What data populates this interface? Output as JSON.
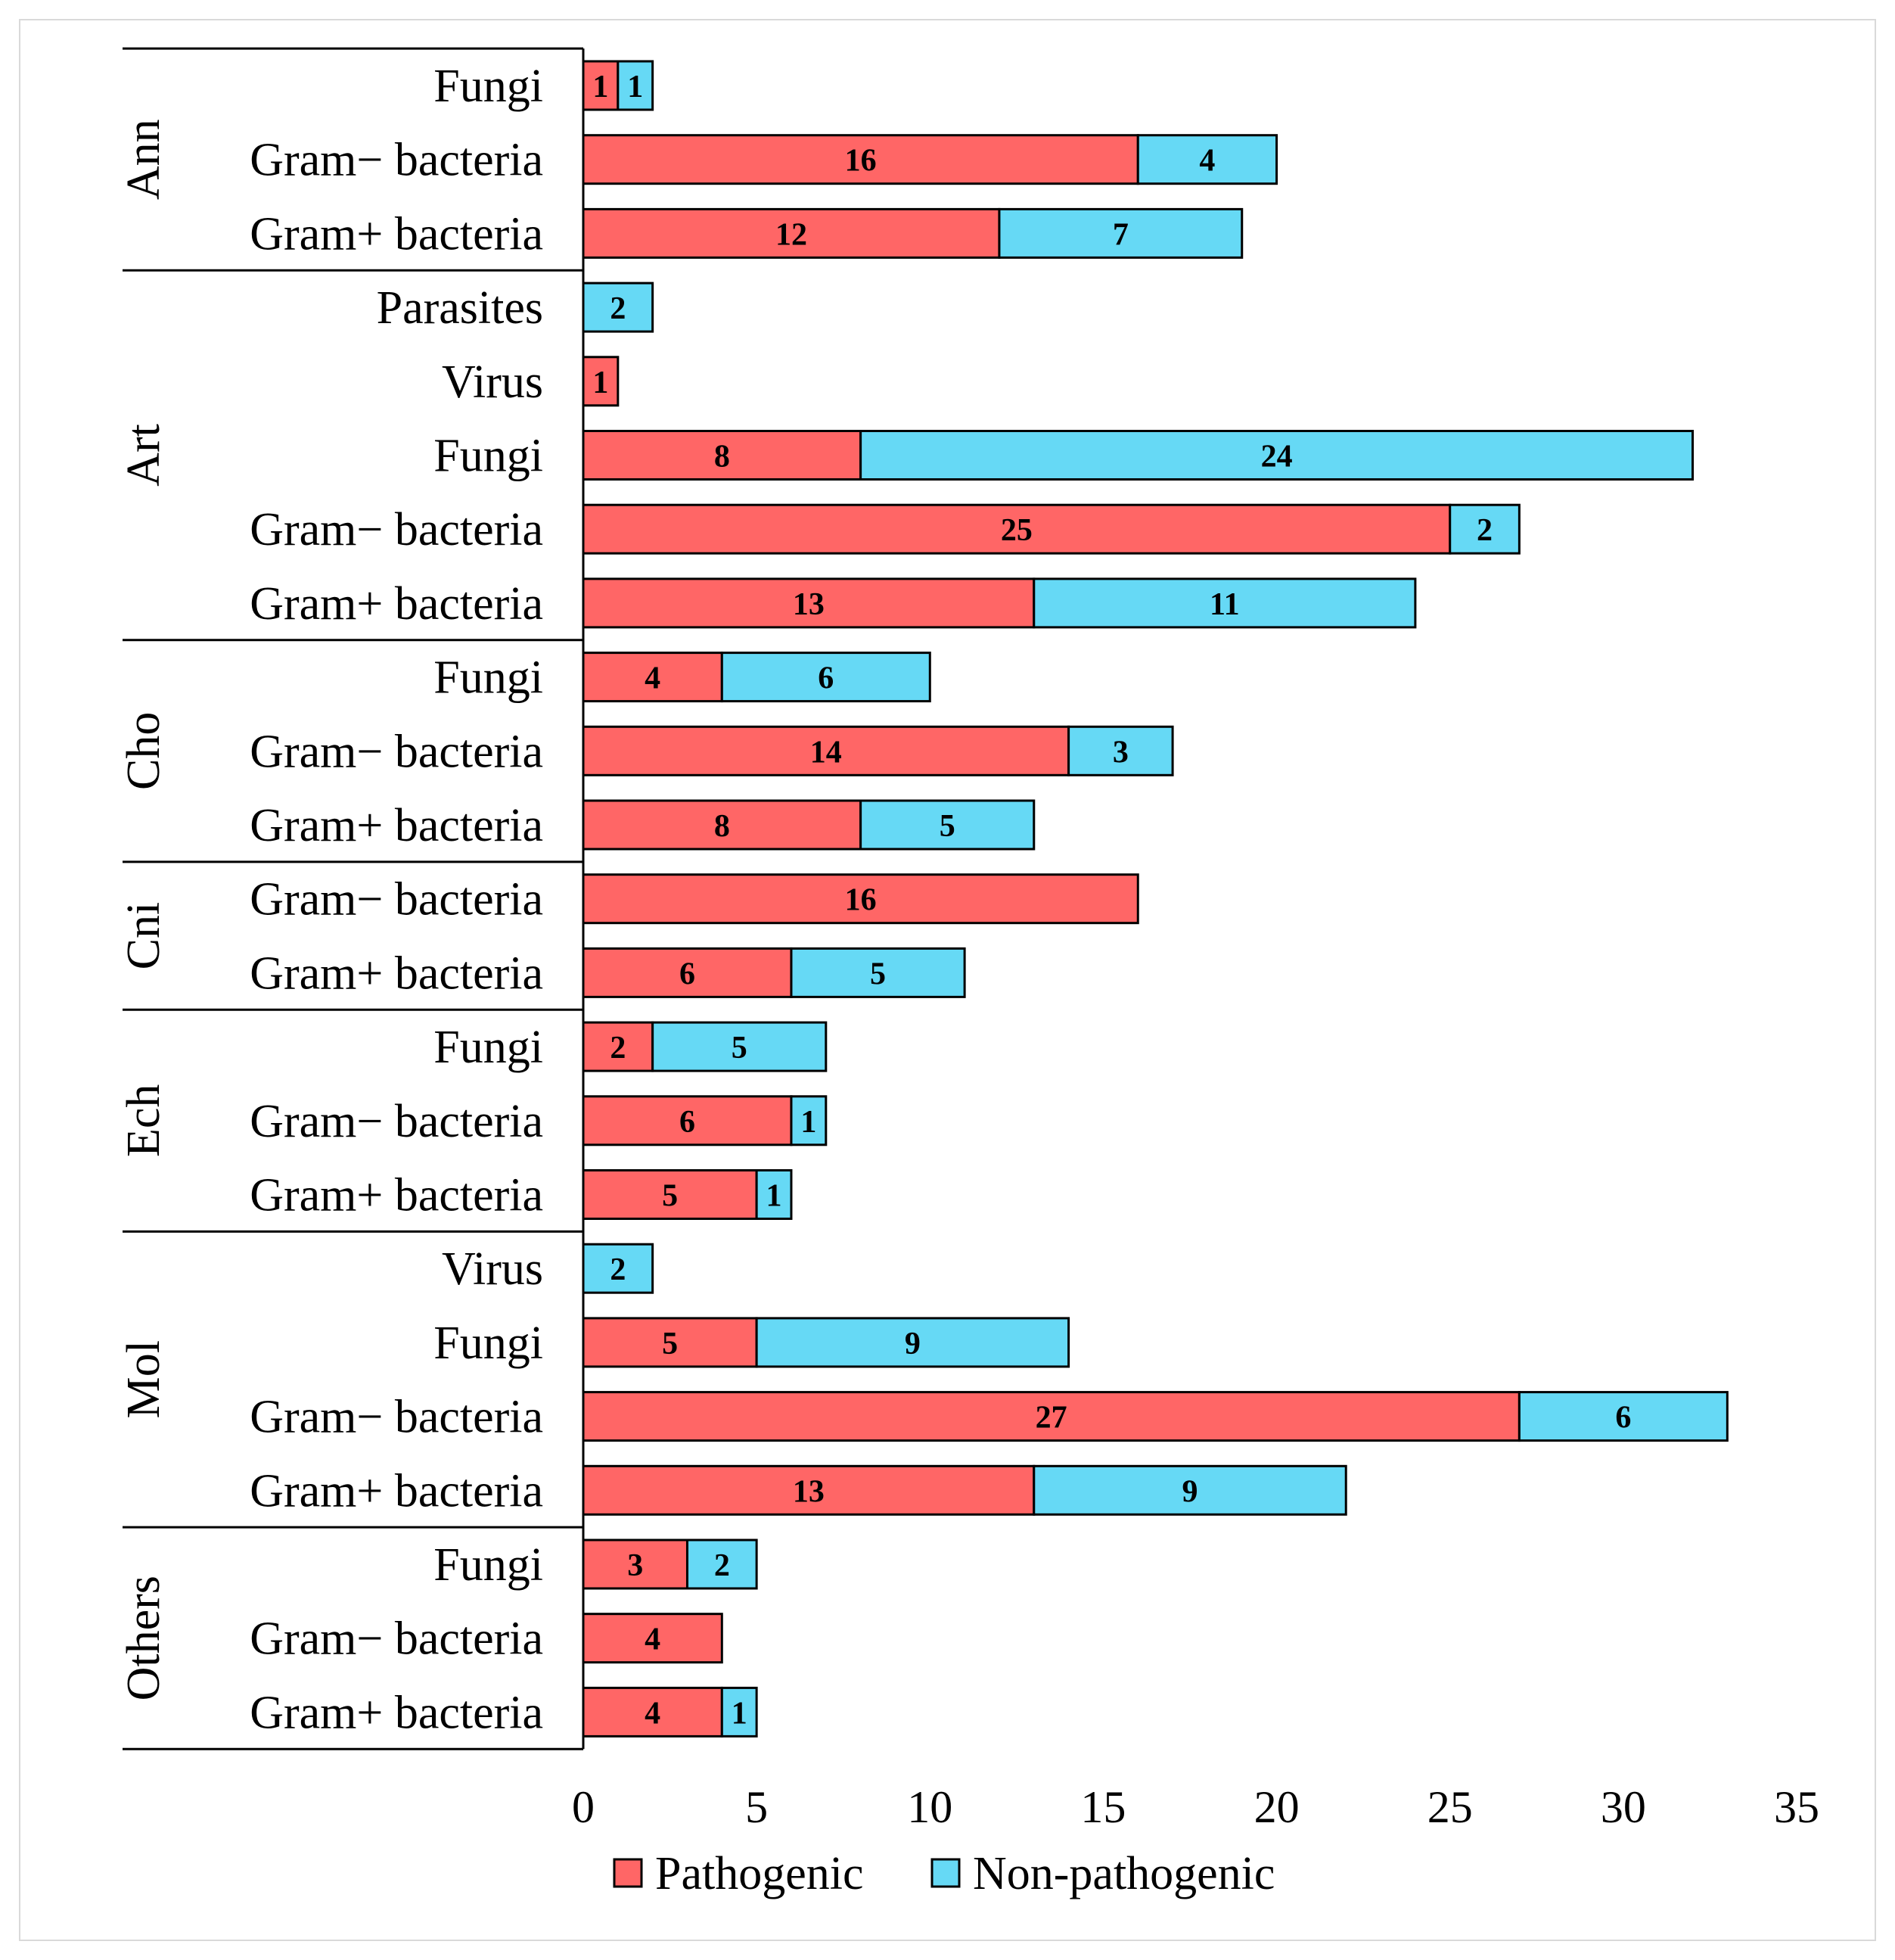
{
  "chart_data": {
    "type": "bar",
    "orientation": "horizontal",
    "stacked": true,
    "title": "",
    "xlabel": "",
    "ylabel": "",
    "xlim": [
      0,
      35
    ],
    "xticks": [
      0,
      5,
      10,
      15,
      20,
      25,
      30,
      35
    ],
    "grid": false,
    "legend_position": "bottom",
    "series": [
      {
        "name": "Pathogenic",
        "color": "#FF6666"
      },
      {
        "name": "Non-pathogenic",
        "color": "#66D9F5"
      }
    ],
    "groups": [
      {
        "name": "Ann",
        "rows": [
          {
            "category": "Fungi",
            "values": [
              1,
              1
            ]
          },
          {
            "category": "Gram− bacteria",
            "values": [
              16,
              4
            ]
          },
          {
            "category": "Gram+ bacteria",
            "values": [
              12,
              7
            ]
          }
        ]
      },
      {
        "name": "Art",
        "rows": [
          {
            "category": "Parasites",
            "values": [
              0,
              2
            ]
          },
          {
            "category": "Virus",
            "values": [
              1,
              0
            ]
          },
          {
            "category": "Fungi",
            "values": [
              8,
              24
            ]
          },
          {
            "category": "Gram− bacteria",
            "values": [
              25,
              2
            ]
          },
          {
            "category": "Gram+ bacteria",
            "values": [
              13,
              11
            ]
          }
        ]
      },
      {
        "name": "Cho",
        "rows": [
          {
            "category": "Fungi",
            "values": [
              4,
              6
            ]
          },
          {
            "category": "Gram− bacteria",
            "values": [
              14,
              3
            ]
          },
          {
            "category": "Gram+ bacteria",
            "values": [
              8,
              5
            ]
          }
        ]
      },
      {
        "name": "Cni",
        "rows": [
          {
            "category": "Gram− bacteria",
            "values": [
              16,
              0
            ]
          },
          {
            "category": "Gram+ bacteria",
            "values": [
              6,
              5
            ]
          }
        ]
      },
      {
        "name": "Ech",
        "rows": [
          {
            "category": "Fungi",
            "values": [
              2,
              5
            ]
          },
          {
            "category": "Gram− bacteria",
            "values": [
              6,
              1
            ]
          },
          {
            "category": "Gram+ bacteria",
            "values": [
              5,
              1
            ]
          }
        ]
      },
      {
        "name": "Mol",
        "rows": [
          {
            "category": "Virus",
            "values": [
              0,
              2
            ]
          },
          {
            "category": "Fungi",
            "values": [
              5,
              9
            ]
          },
          {
            "category": "Gram− bacteria",
            "values": [
              27,
              6
            ]
          },
          {
            "category": "Gram+ bacteria",
            "values": [
              13,
              9
            ]
          }
        ]
      },
      {
        "name": "Others",
        "rows": [
          {
            "category": "Fungi",
            "values": [
              3,
              2
            ]
          },
          {
            "category": "Gram− bacteria",
            "values": [
              4,
              0
            ]
          },
          {
            "category": "Gram+ bacteria",
            "values": [
              4,
              1
            ]
          }
        ]
      }
    ]
  }
}
